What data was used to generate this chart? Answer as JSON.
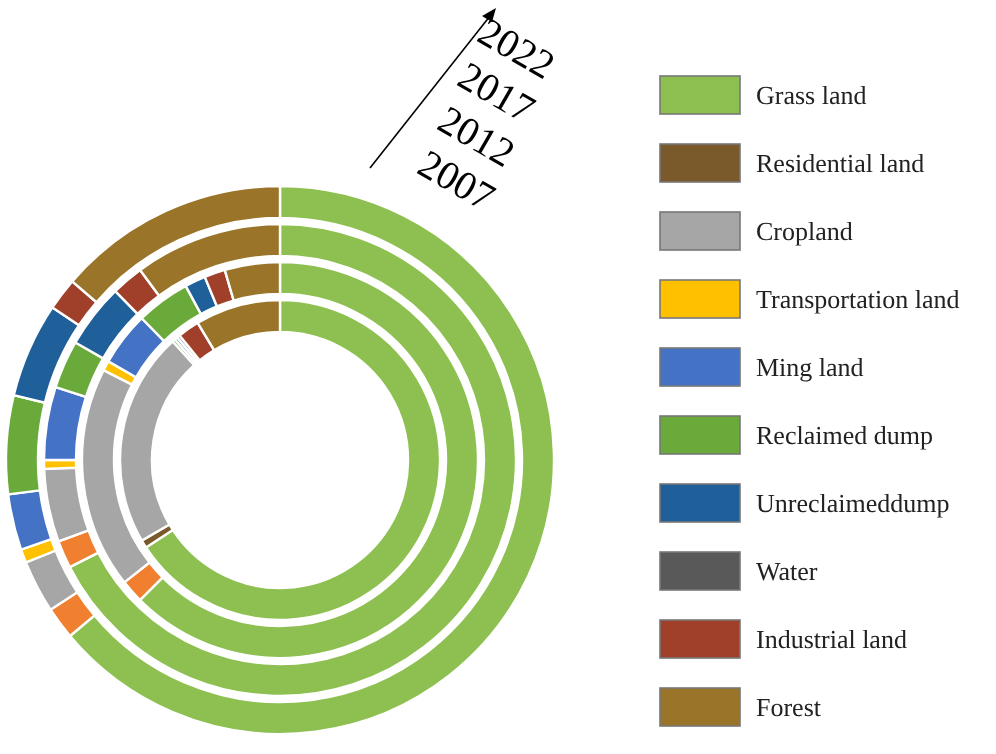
{
  "chart_data": {
    "type": "donut",
    "categories": [
      "Grass land",
      "Residential land",
      null,
      "Cropland",
      "Transportation land",
      "Ming land",
      "Reclaimed dump",
      "Unreclaimeddump",
      "Water",
      "Industrial land",
      "Forest"
    ],
    "colors": [
      "#8dc050",
      "#7a5a2a",
      "#f08030",
      "#a6a6a6",
      "#ffc000",
      "#4472c4",
      "#6aaa3a",
      "#1f5f9a",
      "#595959",
      "#a0402a",
      "#9a7428"
    ],
    "series": [
      {
        "name": "2007",
        "values": [
          65.8,
          0.8,
          0,
          21.7,
          0,
          0,
          0.3,
          0.3,
          0.3,
          2.2,
          8.6
        ]
      },
      {
        "name": "2012",
        "values": [
          62.5,
          0,
          1.9,
          18.1,
          0.8,
          4.4,
          4.4,
          1.7,
          0,
          1.7,
          4.5
        ]
      },
      {
        "name": "2017",
        "values": [
          67.5,
          0,
          1.9,
          5.0,
          0.6,
          5.0,
          3.3,
          4.4,
          0,
          2.2,
          10.1
        ]
      },
      {
        "name": "2022",
        "values": [
          63.9,
          0,
          1.9,
          3.1,
          0.8,
          3.3,
          5.8,
          5.6,
          0,
          1.9,
          13.7
        ]
      }
    ],
    "legend": "right"
  }
}
